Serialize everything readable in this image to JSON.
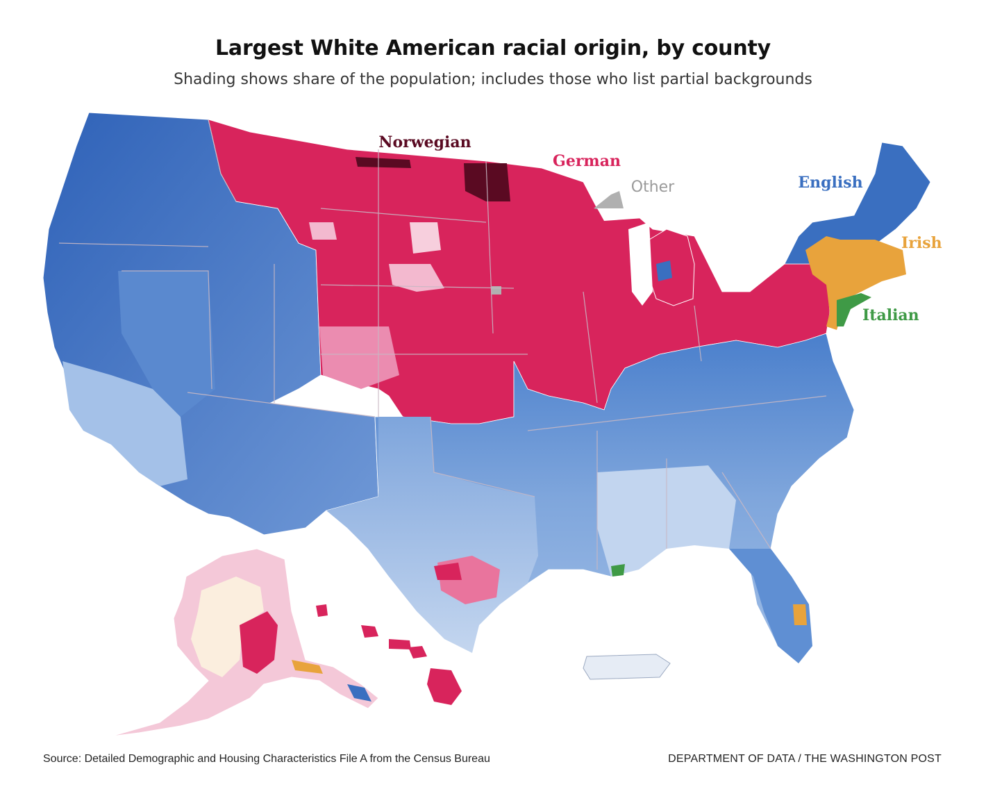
{
  "title": "Largest White American racial origin, by county",
  "subtitle": "Shading shows share of the population; includes those who list partial backgrounds",
  "labels": {
    "norwegian": "Norwegian",
    "german": "German",
    "other": "Other",
    "english": "English",
    "irish": "Irish",
    "italian": "Italian"
  },
  "colors": {
    "english": "#3a6fc0",
    "english_light": "#a9c4e8",
    "german": "#d8245c",
    "german_light": "#f2a8c2",
    "norwegian": "#5a0a22",
    "irish": "#e8a33c",
    "italian": "#3f9a46",
    "other": "#b0b0b0"
  },
  "footer": {
    "source": "Source: Detailed Demographic and Housing Characteristics File A from the Census Bureau",
    "credit": "DEPARTMENT OF DATA / THE WASHINGTON POST"
  }
}
